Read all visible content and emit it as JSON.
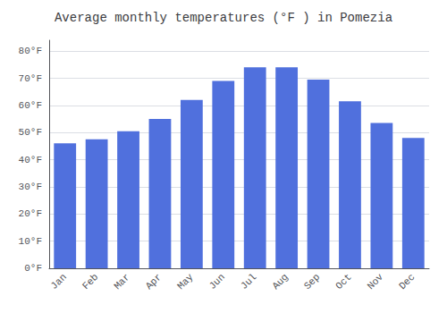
{
  "chart_data": {
    "type": "bar",
    "title": "Average monthly temperatures (°F ) in Pomezia",
    "categories": [
      "Jan",
      "Feb",
      "Mar",
      "Apr",
      "May",
      "Jun",
      "Jul",
      "Aug",
      "Sep",
      "Oct",
      "Nov",
      "Dec"
    ],
    "values": [
      46,
      47.5,
      50.5,
      55,
      62,
      69,
      74,
      74,
      69.5,
      61.5,
      53.5,
      48
    ],
    "ylim": [
      0,
      84
    ],
    "yticks": [
      {
        "value": 0,
        "label": "0°F"
      },
      {
        "value": 10,
        "label": "10°F"
      },
      {
        "value": 20,
        "label": "20°F"
      },
      {
        "value": 30,
        "label": "30°F"
      },
      {
        "value": 40,
        "label": "40°F"
      },
      {
        "value": 50,
        "label": "50°F"
      },
      {
        "value": 60,
        "label": "60°F"
      },
      {
        "value": 70,
        "label": "70°F"
      },
      {
        "value": 80,
        "label": "80°F"
      }
    ],
    "grid": true
  }
}
